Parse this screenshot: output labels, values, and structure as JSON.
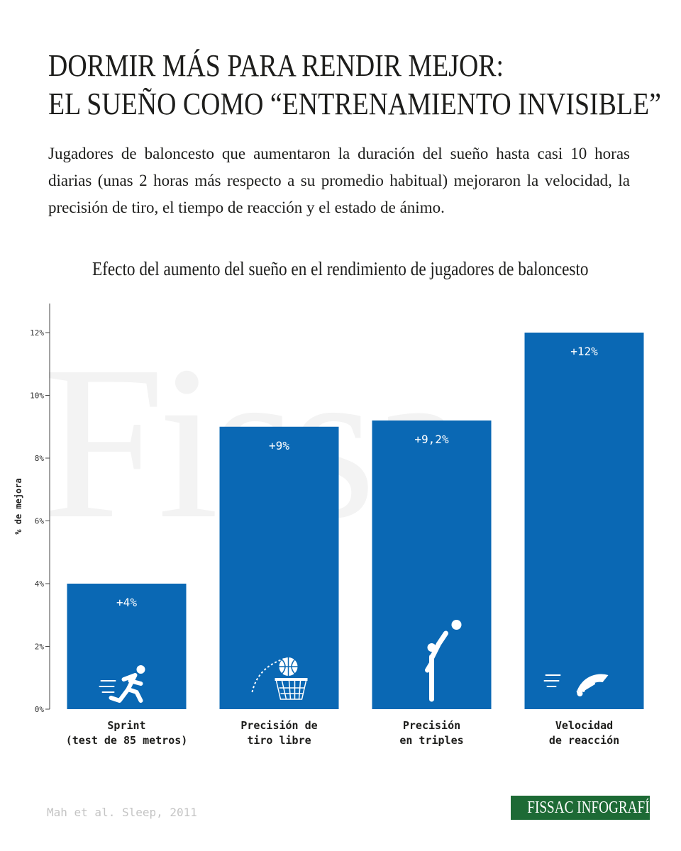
{
  "header": {
    "title_line1": "DORMIR MÁS PARA RENDIR MEJOR:",
    "title_line2": "EL SUEÑO COMO “ENTRENAMIENTO INVISIBLE”",
    "subtitle": "Jugadores de baloncesto que aumentaron la duración del sueño hasta casi 10 horas diarias (unas 2 horas más respecto a su promedio habitual) mejoraron la velocidad, la precisión de tiro, el tiempo de reacción y el estado de ánimo."
  },
  "watermark": "Fissa",
  "chart_data": {
    "type": "bar",
    "title": "Efecto del aumento del sueño en el rendimiento de jugadores de baloncesto",
    "ylabel": "% de mejora",
    "ylim": [
      0,
      12
    ],
    "yticks": [
      "0%",
      "2%",
      "4%",
      "6%",
      "8%",
      "10%",
      "12%"
    ],
    "categories": [
      [
        "Sprint",
        "(test de 85 metros)"
      ],
      [
        "Precisión de",
        "tiro libre"
      ],
      [
        "Precisión",
        "en triples"
      ],
      [
        "Velocidad",
        "de reacción"
      ]
    ],
    "values": [
      4,
      9,
      9.2,
      12
    ],
    "data_labels": [
      "+4%",
      "+9%",
      "+9,2%",
      "+12%"
    ],
    "icons": [
      "sprinter-icon",
      "basketball-hoop-icon",
      "shooter-icon",
      "speedometer-icon"
    ],
    "bar_color": "#0a68b4",
    "grid": false
  },
  "footer": {
    "source": "Mah et al. Sleep, 2011",
    "brand": "FISSAC INFOGRAFÍA",
    "brand_color": "#1d6a35"
  }
}
